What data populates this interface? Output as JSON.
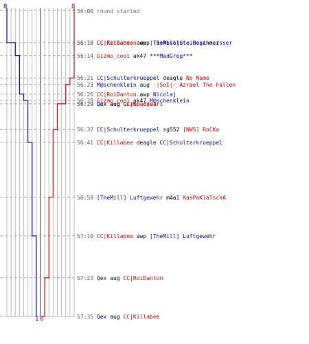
{
  "colors": {
    "blue": "#0000cc",
    "red": "#cc0000",
    "grid": "#bbbbbb",
    "dash": "#aaaaaa",
    "center": "#666666",
    "time": "#555555"
  },
  "counts": {
    "blue_top": "8",
    "red_top": "8",
    "blue_bottom": "1",
    "red_bottom": "0"
  },
  "start": {
    "time": "56:00",
    "text": "round started"
  },
  "events": [
    {
      "time": "56:10",
      "killer": "CC|RoiDanton",
      "killer_team": "red",
      "weapon": "awp",
      "victim": "(1)Absolute Beginner",
      "victim_team": "blue"
    },
    {
      "time": "56:10",
      "killer": "CC|Killabee",
      "killer_team": "red",
      "weapon": "awp",
      "victim": "[TheMill]Steineschmeisser",
      "victim_team": "blue"
    },
    {
      "time": "56:14",
      "killer": "Gizmo_cool",
      "killer_team": "red",
      "weapon": "ak47",
      "victim": "***MadGreg***",
      "victim_team": "blue"
    },
    {
      "time": "56:21",
      "killer": "CC|Schulterkrueppel",
      "killer_team": "blue",
      "weapon": "deagle",
      "victim": "No Name",
      "victim_team": "red"
    },
    {
      "time": "56:23",
      "killer": "M@schenklein",
      "killer_team": "blue",
      "weapon": "aug",
      "victim": "-|SoI|- Azrael The Fallen",
      "victim_team": "red"
    },
    {
      "time": "56:26",
      "killer": "CC|RoiDanton",
      "killer_team": "red",
      "weapon": "awp",
      "victim": "Nicolaj",
      "victim_team": "blue"
    },
    {
      "time": "56:28",
      "killer": "Gizmo_cool",
      "killer_team": "red",
      "weapon": "ak47",
      "victim": "M@schenklein",
      "victim_team": "blue"
    },
    {
      "time": "56:29",
      "killer": "Qex",
      "killer_team": "blue",
      "weapon": "aug",
      "victim": "CC|Spadjaari",
      "victim_team": "red"
    },
    {
      "time": "56:29",
      "killer": "Qex",
      "killer_team": "blue",
      "weapon": "aug",
      "victim": "Gizmo_cool",
      "victim_team": "red"
    },
    {
      "time": "56:37",
      "killer": "CC|Schulterkrueppel",
      "killer_team": "blue",
      "weapon": "sg552",
      "victim": "[NWS] RoCKa",
      "victim_team": "red"
    },
    {
      "time": "56:41",
      "killer": "CC|Killabee",
      "killer_team": "red",
      "weapon": "deagle",
      "victim": "CC|Schulterkrueppel",
      "victim_team": "blue"
    },
    {
      "time": "56:58",
      "killer": "[TheMill] Luftgewehr",
      "killer_team": "blue",
      "weapon": "m4a1",
      "victim": "KasPaKlaTschA",
      "victim_team": "red"
    },
    {
      "time": "57:10",
      "killer": "CC|Killabee",
      "killer_team": "red",
      "weapon": "awp",
      "victim": "[TheMill] Luftgewehr",
      "victim_team": "blue"
    },
    {
      "time": "57:23",
      "killer": "Qex",
      "killer_team": "blue",
      "weapon": "aug",
      "victim": "CC|RoiDanton",
      "victim_team": "red"
    },
    {
      "time": "57:35",
      "killer": "Qex",
      "killer_team": "blue",
      "weapon": "aug",
      "victim": "CC|Killabee",
      "victim_team": "red"
    }
  ]
}
